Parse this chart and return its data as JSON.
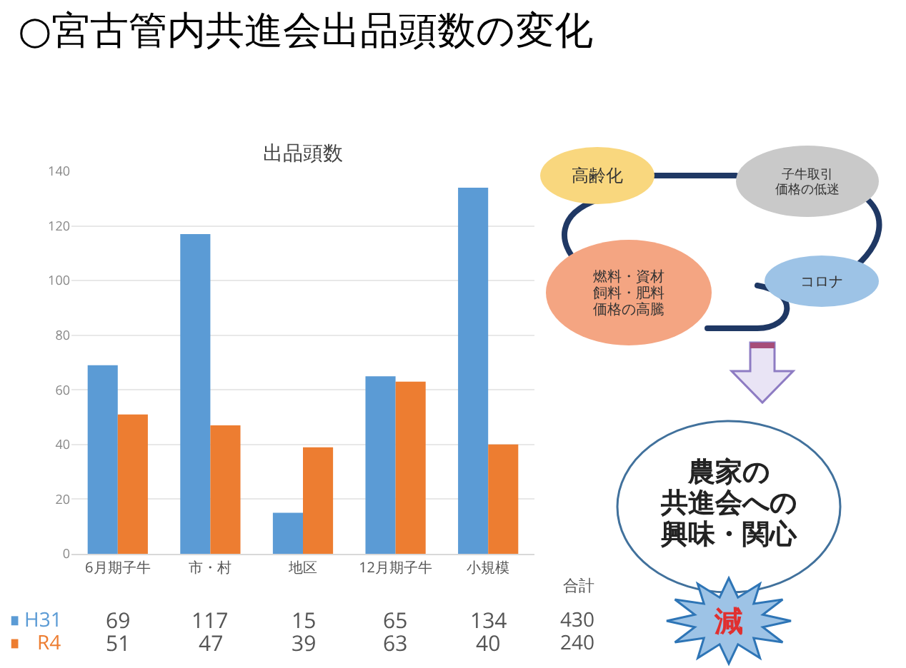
{
  "chart_data": [
    {
      "type": "bar",
      "title": "○宮古管内共進会出品頭数の変化",
      "subtitle": "出品頭数",
      "categories": [
        "6月期子牛",
        "市・村",
        "地区",
        "12月期子牛",
        "小規模"
      ],
      "series": [
        {
          "name": "H31",
          "color": "#5b9bd5",
          "values": [
            69,
            117,
            15,
            65,
            134
          ]
        },
        {
          "name": "R4",
          "color": "#ed7d31",
          "values": [
            51,
            47,
            39,
            63,
            40
          ]
        }
      ],
      "ylim": [
        0,
        140
      ],
      "yticks": [
        0,
        20,
        40,
        60,
        80,
        100,
        120,
        140
      ],
      "grid": "y",
      "legend": "bottom left",
      "data_labels": true,
      "annotations": [
        "合計",
        "430",
        "240"
      ]
    },
    {
      "type": "other",
      "annotations": [
        "高齢化",
        "子牛取引",
        "価格の低迷",
        "燃料・資材",
        "飼料・肥料",
        "価格の高騰",
        "コロナ",
        "農家の",
        "共進会への",
        "興味・関心",
        "減"
      ]
    }
  ]
}
